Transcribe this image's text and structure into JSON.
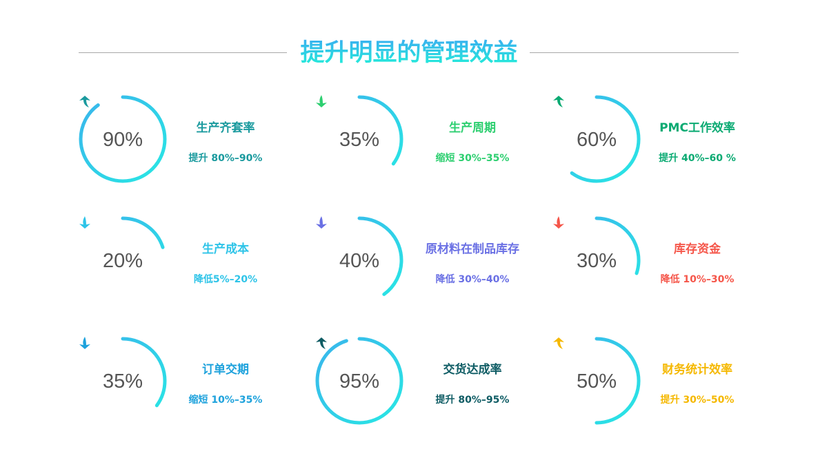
{
  "title": "提升明显的管理效益",
  "items": [
    {
      "percent_label": "90%",
      "value": 90,
      "name": "生产齐套率",
      "desc": "提升 80%–90%",
      "color": "#1a9a9e",
      "direction": "up"
    },
    {
      "percent_label": "35%",
      "value": 35,
      "name": "生产周期",
      "desc": "缩短 30%–35%",
      "color": "#2dcf70",
      "direction": "down"
    },
    {
      "percent_label": "60%",
      "value": 60,
      "name": "PMC工作效率",
      "desc": "提升 40%–60 %",
      "color": "#0aaa72",
      "direction": "up"
    },
    {
      "percent_label": "20%",
      "value": 20,
      "name": "生产成本",
      "desc": "降低5%–20%",
      "color": "#2ec4e8",
      "direction": "down"
    },
    {
      "percent_label": "40%",
      "value": 40,
      "name": "原材料在制品库存",
      "desc": "降低 30%–40%",
      "color": "#6a70e4",
      "direction": "down"
    },
    {
      "percent_label": "30%",
      "value": 30,
      "name": "库存资金",
      "desc": "降低 10%–30%",
      "color": "#f5564a",
      "direction": "down"
    },
    {
      "percent_label": "35%",
      "value": 35,
      "name": "订单交期",
      "desc": "缩短 10%–35%",
      "color": "#1ea2dc",
      "direction": "down"
    },
    {
      "percent_label": "95%",
      "value": 95,
      "name": "交货达成率",
      "desc": "提升 80%–95%",
      "color": "#0e5c64",
      "direction": "up"
    },
    {
      "percent_label": "50%",
      "value": 50,
      "name": "财务统计效率",
      "desc": "提升 30%–50%",
      "color": "#f5b800",
      "direction": "up"
    }
  ],
  "colors": {
    "ring_start": "#3ab4ec",
    "ring_end": "#28e8e4"
  }
}
